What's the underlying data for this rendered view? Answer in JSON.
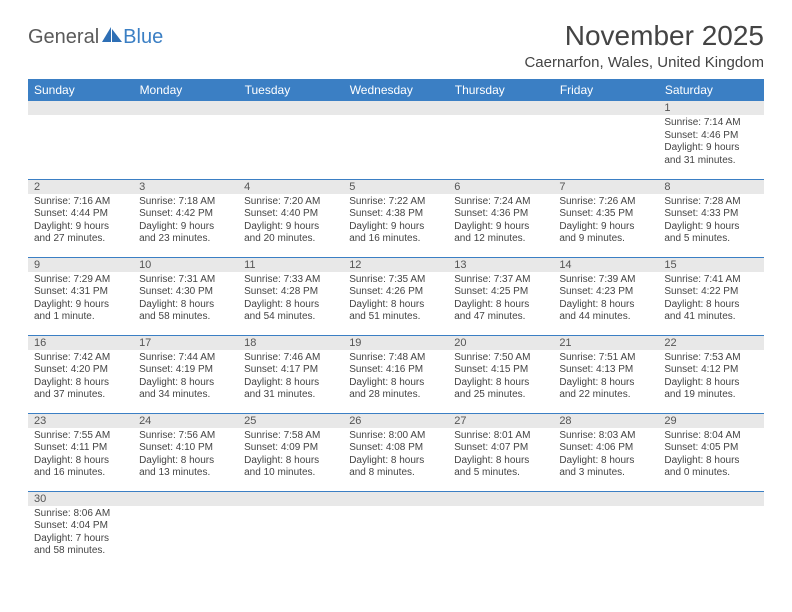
{
  "brand": {
    "part1": "General",
    "part2": "Blue"
  },
  "title": "November 2025",
  "location": "Caernarfon, Wales, United Kingdom",
  "colors": {
    "header_bg": "#3b7fc4",
    "header_text": "#ffffff",
    "daynum_bg": "#e8e8e8",
    "row_border": "#3b7fc4",
    "body_text": "#444444"
  },
  "weekdays": [
    "Sunday",
    "Monday",
    "Tuesday",
    "Wednesday",
    "Thursday",
    "Friday",
    "Saturday"
  ],
  "weeks": [
    [
      null,
      null,
      null,
      null,
      null,
      null,
      {
        "day": "1",
        "sunrise": "Sunrise: 7:14 AM",
        "sunset": "Sunset: 4:46 PM",
        "dl1": "Daylight: 9 hours",
        "dl2": "and 31 minutes."
      }
    ],
    [
      {
        "day": "2",
        "sunrise": "Sunrise: 7:16 AM",
        "sunset": "Sunset: 4:44 PM",
        "dl1": "Daylight: 9 hours",
        "dl2": "and 27 minutes."
      },
      {
        "day": "3",
        "sunrise": "Sunrise: 7:18 AM",
        "sunset": "Sunset: 4:42 PM",
        "dl1": "Daylight: 9 hours",
        "dl2": "and 23 minutes."
      },
      {
        "day": "4",
        "sunrise": "Sunrise: 7:20 AM",
        "sunset": "Sunset: 4:40 PM",
        "dl1": "Daylight: 9 hours",
        "dl2": "and 20 minutes."
      },
      {
        "day": "5",
        "sunrise": "Sunrise: 7:22 AM",
        "sunset": "Sunset: 4:38 PM",
        "dl1": "Daylight: 9 hours",
        "dl2": "and 16 minutes."
      },
      {
        "day": "6",
        "sunrise": "Sunrise: 7:24 AM",
        "sunset": "Sunset: 4:36 PM",
        "dl1": "Daylight: 9 hours",
        "dl2": "and 12 minutes."
      },
      {
        "day": "7",
        "sunrise": "Sunrise: 7:26 AM",
        "sunset": "Sunset: 4:35 PM",
        "dl1": "Daylight: 9 hours",
        "dl2": "and 9 minutes."
      },
      {
        "day": "8",
        "sunrise": "Sunrise: 7:28 AM",
        "sunset": "Sunset: 4:33 PM",
        "dl1": "Daylight: 9 hours",
        "dl2": "and 5 minutes."
      }
    ],
    [
      {
        "day": "9",
        "sunrise": "Sunrise: 7:29 AM",
        "sunset": "Sunset: 4:31 PM",
        "dl1": "Daylight: 9 hours",
        "dl2": "and 1 minute."
      },
      {
        "day": "10",
        "sunrise": "Sunrise: 7:31 AM",
        "sunset": "Sunset: 4:30 PM",
        "dl1": "Daylight: 8 hours",
        "dl2": "and 58 minutes."
      },
      {
        "day": "11",
        "sunrise": "Sunrise: 7:33 AM",
        "sunset": "Sunset: 4:28 PM",
        "dl1": "Daylight: 8 hours",
        "dl2": "and 54 minutes."
      },
      {
        "day": "12",
        "sunrise": "Sunrise: 7:35 AM",
        "sunset": "Sunset: 4:26 PM",
        "dl1": "Daylight: 8 hours",
        "dl2": "and 51 minutes."
      },
      {
        "day": "13",
        "sunrise": "Sunrise: 7:37 AM",
        "sunset": "Sunset: 4:25 PM",
        "dl1": "Daylight: 8 hours",
        "dl2": "and 47 minutes."
      },
      {
        "day": "14",
        "sunrise": "Sunrise: 7:39 AM",
        "sunset": "Sunset: 4:23 PM",
        "dl1": "Daylight: 8 hours",
        "dl2": "and 44 minutes."
      },
      {
        "day": "15",
        "sunrise": "Sunrise: 7:41 AM",
        "sunset": "Sunset: 4:22 PM",
        "dl1": "Daylight: 8 hours",
        "dl2": "and 41 minutes."
      }
    ],
    [
      {
        "day": "16",
        "sunrise": "Sunrise: 7:42 AM",
        "sunset": "Sunset: 4:20 PM",
        "dl1": "Daylight: 8 hours",
        "dl2": "and 37 minutes."
      },
      {
        "day": "17",
        "sunrise": "Sunrise: 7:44 AM",
        "sunset": "Sunset: 4:19 PM",
        "dl1": "Daylight: 8 hours",
        "dl2": "and 34 minutes."
      },
      {
        "day": "18",
        "sunrise": "Sunrise: 7:46 AM",
        "sunset": "Sunset: 4:17 PM",
        "dl1": "Daylight: 8 hours",
        "dl2": "and 31 minutes."
      },
      {
        "day": "19",
        "sunrise": "Sunrise: 7:48 AM",
        "sunset": "Sunset: 4:16 PM",
        "dl1": "Daylight: 8 hours",
        "dl2": "and 28 minutes."
      },
      {
        "day": "20",
        "sunrise": "Sunrise: 7:50 AM",
        "sunset": "Sunset: 4:15 PM",
        "dl1": "Daylight: 8 hours",
        "dl2": "and 25 minutes."
      },
      {
        "day": "21",
        "sunrise": "Sunrise: 7:51 AM",
        "sunset": "Sunset: 4:13 PM",
        "dl1": "Daylight: 8 hours",
        "dl2": "and 22 minutes."
      },
      {
        "day": "22",
        "sunrise": "Sunrise: 7:53 AM",
        "sunset": "Sunset: 4:12 PM",
        "dl1": "Daylight: 8 hours",
        "dl2": "and 19 minutes."
      }
    ],
    [
      {
        "day": "23",
        "sunrise": "Sunrise: 7:55 AM",
        "sunset": "Sunset: 4:11 PM",
        "dl1": "Daylight: 8 hours",
        "dl2": "and 16 minutes."
      },
      {
        "day": "24",
        "sunrise": "Sunrise: 7:56 AM",
        "sunset": "Sunset: 4:10 PM",
        "dl1": "Daylight: 8 hours",
        "dl2": "and 13 minutes."
      },
      {
        "day": "25",
        "sunrise": "Sunrise: 7:58 AM",
        "sunset": "Sunset: 4:09 PM",
        "dl1": "Daylight: 8 hours",
        "dl2": "and 10 minutes."
      },
      {
        "day": "26",
        "sunrise": "Sunrise: 8:00 AM",
        "sunset": "Sunset: 4:08 PM",
        "dl1": "Daylight: 8 hours",
        "dl2": "and 8 minutes."
      },
      {
        "day": "27",
        "sunrise": "Sunrise: 8:01 AM",
        "sunset": "Sunset: 4:07 PM",
        "dl1": "Daylight: 8 hours",
        "dl2": "and 5 minutes."
      },
      {
        "day": "28",
        "sunrise": "Sunrise: 8:03 AM",
        "sunset": "Sunset: 4:06 PM",
        "dl1": "Daylight: 8 hours",
        "dl2": "and 3 minutes."
      },
      {
        "day": "29",
        "sunrise": "Sunrise: 8:04 AM",
        "sunset": "Sunset: 4:05 PM",
        "dl1": "Daylight: 8 hours",
        "dl2": "and 0 minutes."
      }
    ],
    [
      {
        "day": "30",
        "sunrise": "Sunrise: 8:06 AM",
        "sunset": "Sunset: 4:04 PM",
        "dl1": "Daylight: 7 hours",
        "dl2": "and 58 minutes."
      },
      null,
      null,
      null,
      null,
      null,
      null
    ]
  ]
}
